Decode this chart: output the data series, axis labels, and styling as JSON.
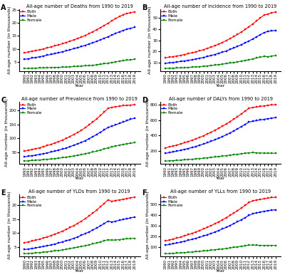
{
  "years": [
    1990,
    1991,
    1992,
    1993,
    1994,
    1995,
    1996,
    1997,
    1998,
    1999,
    2000,
    2001,
    2002,
    2003,
    2004,
    2005,
    2006,
    2007,
    2008,
    2009,
    2010,
    2011,
    2012,
    2013,
    2014,
    2015,
    2016,
    2017,
    2018,
    2019
  ],
  "deaths": {
    "both": [
      8.5,
      8.8,
      9.1,
      9.4,
      9.7,
      10.0,
      10.4,
      10.8,
      11.2,
      11.6,
      12.0,
      12.5,
      13.0,
      13.5,
      14.0,
      14.6,
      15.2,
      15.9,
      16.6,
      17.4,
      18.2,
      19.0,
      19.9,
      20.8,
      21.7,
      22.5,
      23.2,
      23.7,
      24.0,
      24.3
    ],
    "male": [
      6.0,
      6.2,
      6.5,
      6.7,
      7.0,
      7.3,
      7.6,
      7.9,
      8.2,
      8.6,
      8.9,
      9.3,
      9.7,
      10.1,
      10.5,
      10.9,
      11.4,
      11.9,
      12.4,
      12.9,
      13.5,
      14.1,
      14.7,
      15.3,
      16.0,
      16.6,
      17.1,
      17.6,
      18.0,
      18.3
    ],
    "female": [
      2.5,
      2.5,
      2.6,
      2.6,
      2.7,
      2.7,
      2.8,
      2.8,
      2.9,
      2.9,
      3.0,
      3.0,
      3.1,
      3.2,
      3.3,
      3.4,
      3.5,
      3.6,
      3.7,
      3.9,
      4.1,
      4.3,
      4.5,
      4.8,
      5.0,
      5.3,
      5.5,
      5.7,
      5.8,
      6.0
    ]
  },
  "incidence": {
    "both": [
      14.5,
      15.0,
      15.5,
      16.1,
      16.7,
      17.4,
      18.1,
      18.9,
      19.8,
      20.7,
      21.7,
      22.8,
      24.0,
      25.3,
      26.7,
      28.2,
      29.8,
      31.5,
      33.4,
      35.4,
      37.5,
      39.8,
      42.2,
      44.7,
      47.4,
      50.1,
      52.7,
      53.5,
      54.5,
      55.5
    ],
    "male": [
      9.5,
      9.9,
      10.3,
      10.7,
      11.2,
      11.7,
      12.2,
      12.8,
      13.4,
      14.1,
      14.8,
      15.6,
      16.5,
      17.4,
      18.4,
      19.5,
      20.6,
      21.9,
      23.2,
      24.7,
      26.2,
      27.8,
      29.5,
      31.3,
      33.2,
      35.1,
      37.0,
      38.0,
      38.5,
      39.0
    ],
    "female": [
      5.0,
      5.1,
      5.2,
      5.4,
      5.5,
      5.7,
      5.9,
      6.1,
      6.3,
      6.6,
      6.9,
      7.2,
      7.6,
      8.0,
      8.4,
      8.8,
      9.3,
      9.8,
      10.3,
      10.9,
      11.5,
      12.1,
      12.8,
      13.5,
      14.3,
      15.0,
      15.7,
      15.5,
      16.0,
      16.5
    ]
  },
  "prevalence": {
    "both": [
      55,
      58,
      61,
      64,
      67,
      71,
      75,
      79,
      84,
      89,
      94,
      100,
      107,
      114,
      121,
      129,
      138,
      148,
      158,
      169,
      181,
      193,
      206,
      210,
      212,
      214,
      216,
      217,
      218,
      220
    ],
    "male": [
      35,
      37,
      39,
      41,
      44,
      46,
      49,
      52,
      55,
      59,
      62,
      66,
      71,
      76,
      81,
      86,
      92,
      99,
      106,
      114,
      122,
      130,
      139,
      143,
      148,
      153,
      158,
      163,
      168,
      172
    ],
    "female": [
      20,
      21,
      22,
      23,
      24,
      25,
      26,
      27,
      29,
      30,
      32,
      34,
      36,
      38,
      40,
      43,
      46,
      49,
      52,
      55,
      59,
      63,
      67,
      70,
      73,
      76,
      79,
      81,
      83,
      85
    ]
  },
  "dalys": {
    "both": [
      240,
      252,
      264,
      277,
      291,
      306,
      322,
      339,
      357,
      376,
      397,
      419,
      442,
      467,
      493,
      520,
      549,
      579,
      611,
      644,
      679,
      715,
      752,
      761,
      768,
      775,
      782,
      789,
      795,
      800
    ],
    "male": [
      170,
      179,
      188,
      198,
      209,
      220,
      232,
      245,
      259,
      274,
      290,
      307,
      325,
      344,
      365,
      386,
      409,
      433,
      459,
      486,
      515,
      544,
      574,
      583,
      592,
      601,
      609,
      617,
      623,
      630
    ],
    "female": [
      70,
      73,
      76,
      79,
      82,
      86,
      90,
      94,
      98,
      103,
      108,
      112,
      117,
      123,
      129,
      134,
      140,
      146,
      152,
      158,
      164,
      170,
      177,
      178,
      176,
      174,
      172,
      172,
      172,
      170
    ]
  },
  "ylds": {
    "both": [
      6.5,
      6.8,
      7.1,
      7.4,
      7.8,
      8.2,
      8.6,
      9.1,
      9.6,
      10.1,
      10.7,
      11.3,
      12.0,
      12.7,
      13.5,
      14.3,
      15.2,
      16.2,
      17.2,
      18.3,
      19.5,
      20.7,
      22.0,
      21.5,
      21.8,
      22.0,
      22.2,
      22.5,
      22.8,
      23.0
    ],
    "male": [
      4.0,
      4.2,
      4.4,
      4.6,
      4.9,
      5.1,
      5.4,
      5.7,
      6.0,
      6.4,
      6.8,
      7.2,
      7.6,
      8.1,
      8.6,
      9.2,
      9.8,
      10.4,
      11.1,
      11.8,
      12.6,
      13.4,
      14.3,
      14.0,
      14.3,
      14.6,
      14.9,
      15.2,
      15.5,
      15.8
    ],
    "female": [
      2.5,
      2.6,
      2.7,
      2.8,
      2.9,
      3.1,
      3.2,
      3.4,
      3.6,
      3.7,
      3.9,
      4.1,
      4.4,
      4.6,
      4.9,
      5.1,
      5.4,
      5.7,
      6.1,
      6.4,
      6.8,
      7.2,
      7.6,
      7.4,
      7.5,
      7.6,
      7.8,
      7.9,
      8.0,
      8.1
    ]
  },
  "ylls": {
    "both": [
      160,
      168,
      177,
      186,
      196,
      207,
      218,
      230,
      243,
      257,
      271,
      286,
      302,
      319,
      337,
      356,
      376,
      397,
      419,
      442,
      466,
      491,
      517,
      534,
      540,
      546,
      552,
      558,
      563,
      567
    ],
    "male": [
      120,
      126,
      133,
      140,
      148,
      156,
      165,
      174,
      184,
      194,
      205,
      217,
      229,
      242,
      256,
      271,
      286,
      303,
      320,
      338,
      357,
      377,
      397,
      413,
      421,
      428,
      435,
      441,
      446,
      450
    ],
    "female": [
      40,
      42,
      44,
      46,
      48,
      51,
      53,
      56,
      59,
      62,
      66,
      69,
      73,
      77,
      81,
      85,
      89,
      94,
      99,
      104,
      109,
      114,
      120,
      121,
      119,
      118,
      117,
      117,
      117,
      117
    ]
  },
  "panel_labels": [
    "A",
    "B",
    "C",
    "D",
    "E",
    "F"
  ],
  "titles": [
    "All-age number of Deaths from 1990 to 2019",
    "All-age number of Incidence from 1990 to 2019",
    "All-age number of Prevalence from 1990 to 2019",
    "All-age number of DALYs from 1990 to 2019",
    "All-age number of YLDs from 1990 to 2019",
    "All-age number of YLLs from 1990 to 2019"
  ],
  "ylabel": "All-age number (in thousands)",
  "xlabel": "Year",
  "colors": {
    "both": "#FF0000",
    "male": "#0000FF",
    "female": "#008800"
  },
  "marker": "s",
  "markersize": 1.8,
  "linewidth": 0.8,
  "tick_fontsize": 4.0,
  "label_fontsize": 4.5,
  "title_fontsize": 4.8,
  "legend_fontsize": 4.2,
  "panel_label_fontsize": 7
}
